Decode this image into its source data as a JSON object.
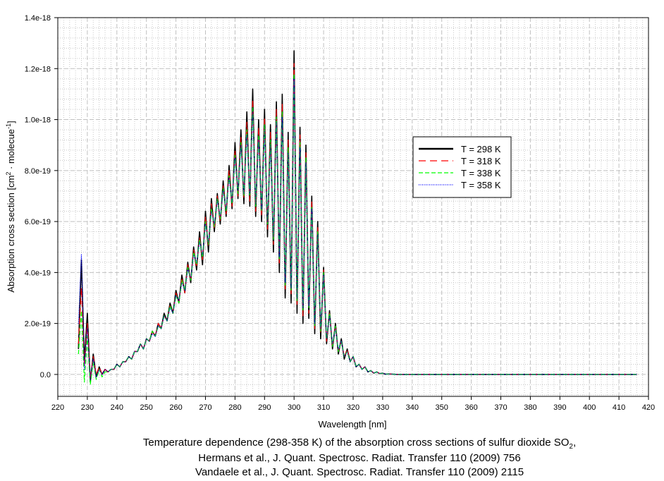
{
  "chart_data": {
    "type": "line",
    "title": "",
    "xlabel": "Wavelength [nm]",
    "ylabel": "Absorption cross section [cm² · molecue⁻¹]",
    "ylabel_parts": {
      "pre": "Absorption cross section [cm",
      "sup1": "2",
      "mid": " · molecue",
      "sup2": "-1",
      "post": "]"
    },
    "xlim": [
      220,
      420
    ],
    "ylim": [
      -8.6e-20,
      1.4e-18
    ],
    "y_values_scale": 1e-19,
    "grid": true,
    "legend_position": "center-right",
    "x_ticks": [
      220,
      230,
      240,
      250,
      260,
      270,
      280,
      290,
      300,
      310,
      320,
      330,
      340,
      350,
      360,
      370,
      380,
      390,
      400,
      410,
      420
    ],
    "x_tick_labels": [
      "220",
      "230",
      "240",
      "250",
      "260",
      "270",
      "280",
      "290",
      "300",
      "310",
      "320",
      "330",
      "340",
      "350",
      "360",
      "370",
      "380",
      "390",
      "400",
      "410",
      "420"
    ],
    "y_ticks": [
      0,
      2e-19,
      4e-19,
      6e-19,
      8e-19,
      1e-18,
      1.2e-18,
      1.4e-18
    ],
    "y_tick_labels": [
      "0.0",
      "2.0e-19",
      "4.0e-19",
      "6.0e-19",
      "8.0e-19",
      "1.0e-18",
      "1.2e-18",
      "1.4e-18"
    ],
    "x": [
      227,
      228,
      229,
      230,
      231,
      232,
      233,
      234,
      235,
      236,
      237,
      238,
      239,
      240,
      241,
      242,
      243,
      244,
      245,
      246,
      247,
      248,
      249,
      250,
      251,
      252,
      253,
      254,
      255,
      256,
      257,
      258,
      259,
      260,
      261,
      262,
      263,
      264,
      265,
      266,
      267,
      268,
      269,
      270,
      271,
      272,
      273,
      274,
      275,
      276,
      277,
      278,
      279,
      280,
      281,
      282,
      283,
      284,
      285,
      286,
      287,
      288,
      289,
      290,
      291,
      292,
      293,
      294,
      295,
      296,
      297,
      298,
      299,
      300,
      301,
      302,
      303,
      304,
      305,
      306,
      307,
      308,
      309,
      310,
      311,
      312,
      313,
      314,
      315,
      316,
      317,
      318,
      319,
      320,
      321,
      322,
      323,
      324,
      325,
      326,
      327,
      328,
      329,
      330,
      331,
      332,
      335,
      416
    ],
    "series": [
      {
        "name": "T = 298 K",
        "color": "#000000",
        "style": "solid",
        "values": [
          1.0,
          4.5,
          0.5,
          2.4,
          -0.3,
          0.8,
          -0.1,
          0.3,
          0.0,
          0.2,
          0.1,
          0.2,
          0.2,
          0.4,
          0.3,
          0.5,
          0.5,
          0.7,
          0.6,
          0.9,
          0.9,
          1.2,
          1.0,
          1.4,
          1.3,
          1.7,
          1.5,
          2.0,
          1.8,
          2.4,
          2.1,
          2.8,
          2.4,
          3.3,
          2.8,
          3.9,
          3.2,
          4.4,
          3.6,
          5.0,
          4.1,
          5.6,
          4.3,
          6.4,
          4.8,
          6.9,
          5.6,
          7.1,
          5.9,
          7.6,
          6.2,
          8.2,
          6.5,
          9.1,
          6.9,
          9.6,
          6.7,
          10.3,
          6.6,
          11.2,
          6.2,
          10.0,
          6.0,
          10.4,
          5.4,
          9.8,
          4.8,
          10.7,
          4.0,
          11.0,
          3.0,
          9.5,
          2.8,
          12.7,
          2.4,
          9.7,
          2.0,
          9.0,
          2.2,
          7.0,
          1.6,
          6.0,
          1.4,
          4.2,
          1.2,
          2.5,
          1.0,
          2.0,
          0.8,
          1.4,
          0.6,
          1.0,
          0.5,
          0.7,
          0.3,
          0.4,
          0.2,
          0.3,
          0.1,
          0.15,
          0.05,
          0.1,
          0.03,
          0.05,
          0.01,
          0.02,
          0,
          0
        ]
      },
      {
        "name": "T = 318 K",
        "color": "#ff0000",
        "style": "dash",
        "values": [
          1.2,
          3.4,
          0.3,
          2.0,
          -0.2,
          0.7,
          0.0,
          0.3,
          0.0,
          0.2,
          0.1,
          0.2,
          0.2,
          0.4,
          0.3,
          0.5,
          0.5,
          0.7,
          0.6,
          0.9,
          0.9,
          1.2,
          1.0,
          1.4,
          1.3,
          1.7,
          1.5,
          2.0,
          1.8,
          2.3,
          2.1,
          2.7,
          2.4,
          3.2,
          2.8,
          3.8,
          3.2,
          4.3,
          3.7,
          4.9,
          4.2,
          5.4,
          4.5,
          6.2,
          5.0,
          6.7,
          5.7,
          7.0,
          6.0,
          7.4,
          6.3,
          8.0,
          6.6,
          8.8,
          7.0,
          9.3,
          6.9,
          9.9,
          6.8,
          10.8,
          6.4,
          9.7,
          6.2,
          10.1,
          5.7,
          9.5,
          5.1,
          10.4,
          4.3,
          10.6,
          3.3,
          9.2,
          3.1,
          12.2,
          2.7,
          9.4,
          2.3,
          8.7,
          2.4,
          6.8,
          1.8,
          5.8,
          1.6,
          4.1,
          1.3,
          2.4,
          1.1,
          1.9,
          0.9,
          1.3,
          0.7,
          1.0,
          0.5,
          0.7,
          0.3,
          0.4,
          0.2,
          0.3,
          0.1,
          0.15,
          0.05,
          0.1,
          0.03,
          0.05,
          0.01,
          0.02,
          0,
          0
        ]
      },
      {
        "name": "T = 338 K",
        "color": "#00ff00",
        "style": "dash-short",
        "values": [
          0.8,
          2.5,
          -0.3,
          1.5,
          -0.4,
          0.5,
          -0.2,
          0.2,
          -0.1,
          0.1,
          0.1,
          0.2,
          0.2,
          0.4,
          0.3,
          0.5,
          0.5,
          0.7,
          0.6,
          0.9,
          0.9,
          1.2,
          1.0,
          1.4,
          1.3,
          1.7,
          1.5,
          1.9,
          1.8,
          2.3,
          2.1,
          2.7,
          2.4,
          3.1,
          2.8,
          3.7,
          3.3,
          4.2,
          3.7,
          4.8,
          4.3,
          5.3,
          4.6,
          6.0,
          5.1,
          6.5,
          5.8,
          6.9,
          6.1,
          7.3,
          6.4,
          7.8,
          6.7,
          8.6,
          7.1,
          9.1,
          7.0,
          9.6,
          7.0,
          10.5,
          6.6,
          9.4,
          6.4,
          9.8,
          5.9,
          9.2,
          5.3,
          10.1,
          4.5,
          10.3,
          3.5,
          8.9,
          3.3,
          11.8,
          2.9,
          9.1,
          2.5,
          8.5,
          2.6,
          6.6,
          1.9,
          5.6,
          1.7,
          4.0,
          1.4,
          2.4,
          1.1,
          1.9,
          0.9,
          1.3,
          0.7,
          0.9,
          0.5,
          0.7,
          0.3,
          0.4,
          0.2,
          0.3,
          0.1,
          0.15,
          0.05,
          0.1,
          0.03,
          0.05,
          0.01,
          0.02,
          0,
          0
        ]
      },
      {
        "name": "T = 358 K",
        "color": "#0000ff",
        "style": "dot",
        "values": [
          2.0,
          4.7,
          0.2,
          1.8,
          -0.2,
          0.6,
          -0.1,
          0.2,
          0.0,
          0.2,
          0.1,
          0.2,
          0.2,
          0.4,
          0.3,
          0.5,
          0.5,
          0.7,
          0.6,
          0.9,
          0.9,
          1.2,
          1.0,
          1.4,
          1.3,
          1.6,
          1.5,
          1.9,
          1.8,
          2.3,
          2.1,
          2.6,
          2.4,
          3.1,
          2.9,
          3.6,
          3.3,
          4.1,
          3.8,
          4.7,
          4.4,
          5.2,
          4.7,
          5.9,
          5.2,
          6.4,
          5.9,
          6.8,
          6.2,
          7.2,
          6.5,
          7.7,
          6.8,
          8.5,
          7.2,
          9.0,
          7.1,
          9.4,
          7.1,
          10.3,
          6.7,
          9.2,
          6.5,
          9.6,
          6.0,
          9.0,
          5.4,
          9.9,
          4.6,
          10.1,
          3.6,
          8.7,
          3.4,
          11.6,
          3.0,
          8.9,
          2.6,
          8.3,
          2.7,
          6.5,
          2.0,
          5.5,
          1.8,
          3.9,
          1.4,
          2.3,
          1.2,
          1.8,
          1.0,
          1.3,
          0.7,
          0.9,
          0.5,
          0.7,
          0.3,
          0.4,
          0.2,
          0.3,
          0.1,
          0.15,
          0.05,
          0.1,
          0.03,
          0.05,
          0.01,
          0.02,
          0,
          0
        ]
      }
    ]
  },
  "caption": {
    "line1_pre": "Temperature dependence (298-358 K) of the absorption cross sections of sulfur dioxide SO",
    "line1_sub": "2",
    "line1_post": ",",
    "line2": "Hermans et al., J. Quant. Spectrosc. Radiat. Transfer 110 (2009) 756",
    "line3": "Vandaele et al., J. Quant. Spectrosc. Radiat. Transfer 110 (2009) 2115"
  }
}
